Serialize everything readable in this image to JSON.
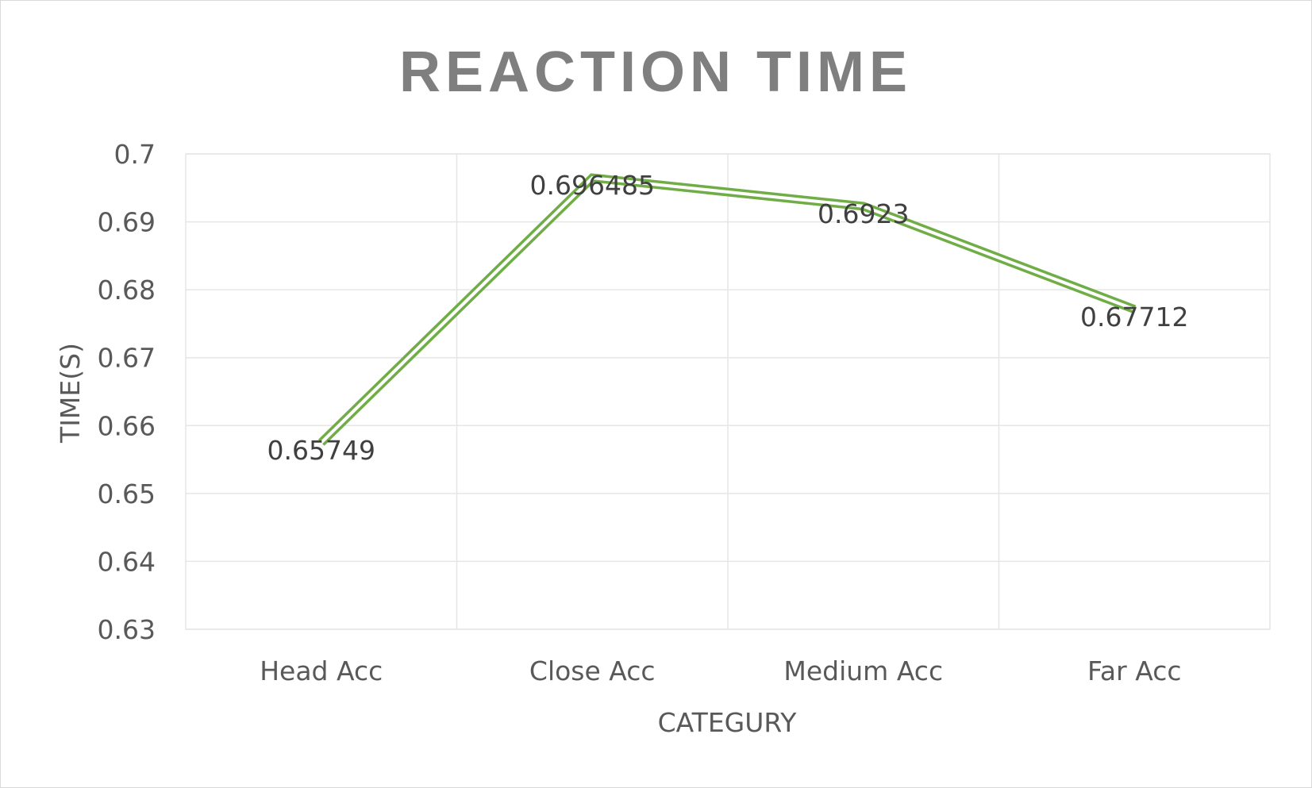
{
  "chart_data": {
    "type": "line",
    "title": "REACTION TIME",
    "xlabel": "CATEGURY",
    "ylabel": "TIME(S)",
    "categories": [
      "Head Acc",
      "Close Acc",
      "Medium Acc",
      "Far Acc"
    ],
    "series": [
      {
        "values": [
          0.65749,
          0.696485,
          0.6923,
          0.67712
        ],
        "data_labels": [
          "0.65749",
          "0.696485",
          "0.6923",
          "0.67712"
        ],
        "color": "#70ad47"
      }
    ],
    "ylim": [
      0.63,
      0.7
    ],
    "yticks": [
      "0.63",
      "0.64",
      "0.65",
      "0.66",
      "0.67",
      "0.68",
      "0.69",
      "0.7"
    ],
    "grid": true,
    "legend": "none"
  }
}
